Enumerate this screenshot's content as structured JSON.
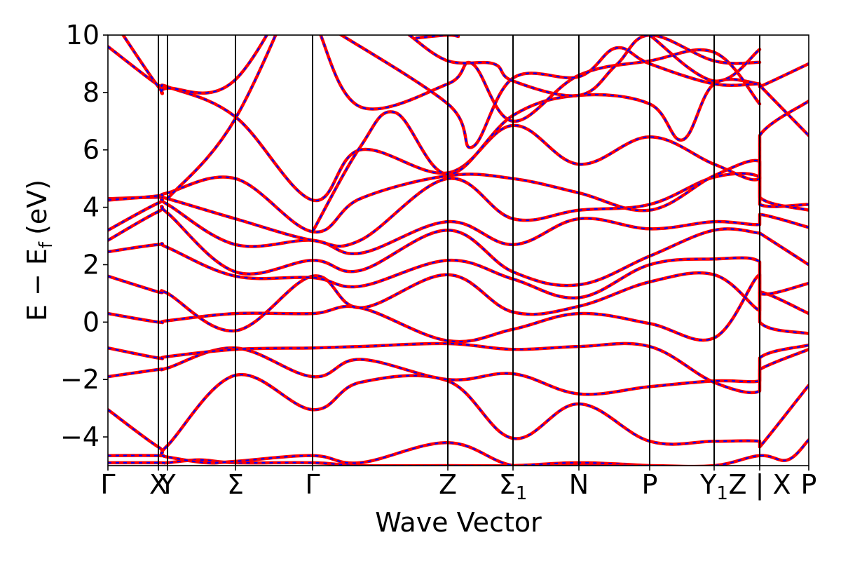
{
  "chart_data": {
    "type": "line",
    "xlabel": "Wave Vector",
    "ylabel_main": "E − E",
    "ylabel_sub": "f",
    "ylabel_unit": "(eV)",
    "ylim": [
      -5,
      10
    ],
    "yticks": [
      -4,
      -2,
      0,
      2,
      4,
      6,
      8,
      10
    ],
    "ytick_labels": [
      "−4",
      "−2",
      "0",
      "2",
      "4",
      "6",
      "8",
      "10"
    ],
    "x_range": [
      0,
      10
    ],
    "kpoints": [
      {
        "label": "Γ",
        "x": 0.0
      },
      {
        "label": "X",
        "x": 0.72
      },
      {
        "label": "Y",
        "x": 0.85
      },
      {
        "label": "Σ",
        "x": 1.82
      },
      {
        "label": "Γ",
        "x": 2.92
      },
      {
        "label": "Z",
        "x": 4.85
      },
      {
        "label": "Σ",
        "sub": "1",
        "x": 5.78
      },
      {
        "label": "N",
        "x": 6.72
      },
      {
        "label": "P",
        "x": 7.73
      },
      {
        "label": "Y",
        "sub": "1",
        "x": 8.65
      },
      {
        "label": "Z | X",
        "x": 9.3
      },
      {
        "label": "P",
        "x": 10.0
      }
    ],
    "series_styles": [
      {
        "color": "#ff0000",
        "style": "solid"
      },
      {
        "color": "#0000ff",
        "style": "dashed"
      }
    ],
    "bands": [
      [
        [
          0,
          -4.9
        ],
        [
          0.72,
          -4.9
        ],
        [
          0.85,
          -4.9
        ],
        [
          1.3,
          -4.8
        ],
        [
          1.82,
          -4.9
        ],
        [
          2.92,
          -4.9
        ],
        [
          3.6,
          -5.0
        ],
        [
          4.85,
          -5.0
        ],
        [
          5.78,
          -5.0
        ],
        [
          6.72,
          -4.9
        ],
        [
          7.73,
          -5.0
        ]
      ],
      [
        [
          0,
          -4.65
        ],
        [
          0.72,
          -4.65
        ],
        [
          0.85,
          -4.7
        ],
        [
          1.4,
          -4.9
        ],
        [
          1.82,
          -4.85
        ],
        [
          2.92,
          -4.65
        ],
        [
          3.6,
          -4.9
        ],
        [
          4.85,
          -4.2
        ],
        [
          5.78,
          -5.0
        ],
        [
          6.72,
          -5.0
        ],
        [
          7.73,
          -5.0
        ],
        [
          8.65,
          -5.0
        ],
        [
          9.3,
          -4.65
        ],
        [
          9.7,
          -4.8
        ],
        [
          10,
          -4.1
        ]
      ],
      [
        [
          0,
          -3.05
        ],
        [
          0.72,
          -4.35
        ],
        [
          0.85,
          -4.3
        ],
        [
          1.82,
          -1.85
        ],
        [
          2.92,
          -3.05
        ],
        [
          3.6,
          -2.1
        ],
        [
          4.85,
          -2.05
        ],
        [
          5.78,
          -4.05
        ],
        [
          6.72,
          -2.85
        ],
        [
          7.73,
          -4.15
        ],
        [
          8.65,
          -4.15
        ],
        [
          9.3,
          -4.15
        ],
        [
          9.3,
          -4.35
        ],
        [
          10,
          -2.2
        ]
      ],
      [
        [
          0,
          -1.9
        ],
        [
          0.72,
          -1.65
        ],
        [
          0.85,
          -1.6
        ],
        [
          1.82,
          -0.9
        ],
        [
          2.92,
          -1.9
        ],
        [
          3.6,
          -1.3
        ],
        [
          4.85,
          -2.0
        ],
        [
          5.78,
          -1.8
        ],
        [
          6.72,
          -2.5
        ],
        [
          7.73,
          -2.25
        ],
        [
          8.65,
          -2.05
        ],
        [
          9.3,
          -2.05
        ],
        [
          9.3,
          -1.65
        ],
        [
          10,
          -0.95
        ]
      ],
      [
        [
          0,
          -0.9
        ],
        [
          0.72,
          -1.25
        ],
        [
          0.85,
          -1.2
        ],
        [
          1.82,
          -0.95
        ],
        [
          2.92,
          -0.9
        ],
        [
          3.6,
          -0.85
        ],
        [
          4.85,
          -0.75
        ],
        [
          5.78,
          -0.95
        ],
        [
          6.72,
          -0.85
        ],
        [
          7.73,
          -0.85
        ],
        [
          8.65,
          -2.1
        ],
        [
          9.3,
          -2.4
        ],
        [
          9.3,
          -1.25
        ],
        [
          10,
          -0.8
        ]
      ],
      [
        [
          0,
          0.3
        ],
        [
          0.72,
          0.0
        ],
        [
          0.85,
          0.05
        ],
        [
          1.82,
          0.3
        ],
        [
          2.92,
          0.3
        ],
        [
          3.6,
          0.5
        ],
        [
          4.85,
          -0.65
        ],
        [
          5.78,
          -0.25
        ],
        [
          6.72,
          0.3
        ],
        [
          7.73,
          -0.05
        ],
        [
          8.65,
          -0.55
        ],
        [
          9.3,
          1.65
        ],
        [
          9.3,
          0.0
        ],
        [
          10,
          -0.4
        ]
      ],
      [
        [
          0,
          1.6
        ],
        [
          0.72,
          1.05
        ],
        [
          0.85,
          1.0
        ],
        [
          1.82,
          -0.3
        ],
        [
          2.92,
          1.6
        ],
        [
          3.6,
          0.5
        ],
        [
          4.85,
          1.65
        ],
        [
          5.78,
          0.35
        ],
        [
          6.72,
          0.55
        ],
        [
          7.73,
          1.4
        ],
        [
          8.65,
          1.65
        ],
        [
          9.3,
          0.4
        ],
        [
          9.3,
          1.05
        ],
        [
          10,
          0.3
        ]
      ],
      [
        [
          0,
          2.45
        ],
        [
          0.72,
          2.7
        ],
        [
          0.85,
          2.6
        ],
        [
          1.82,
          1.6
        ],
        [
          2.92,
          1.55
        ],
        [
          3.6,
          1.25
        ],
        [
          4.85,
          2.15
        ],
        [
          5.78,
          1.5
        ],
        [
          6.72,
          0.85
        ],
        [
          7.73,
          2.0
        ],
        [
          8.65,
          2.2
        ],
        [
          9.3,
          2.1
        ],
        [
          9.3,
          1.0
        ],
        [
          10,
          1.35
        ]
      ],
      [
        [
          0,
          2.85
        ],
        [
          0.72,
          3.85
        ],
        [
          0.85,
          3.8
        ],
        [
          1.82,
          1.75
        ],
        [
          2.92,
          2.15
        ],
        [
          3.6,
          1.8
        ],
        [
          4.85,
          3.2
        ],
        [
          5.78,
          1.75
        ],
        [
          6.72,
          1.3
        ],
        [
          7.73,
          2.3
        ],
        [
          8.65,
          3.2
        ],
        [
          9.3,
          3.1
        ],
        [
          9.3,
          3.1
        ],
        [
          10,
          2.0
        ]
      ],
      [
        [
          0,
          3.2
        ],
        [
          0.72,
          4.15
        ],
        [
          0.85,
          4.1
        ],
        [
          1.82,
          2.7
        ],
        [
          2.92,
          2.85
        ],
        [
          3.6,
          2.4
        ],
        [
          4.85,
          3.5
        ],
        [
          5.78,
          2.7
        ],
        [
          6.72,
          3.6
        ],
        [
          7.73,
          3.25
        ],
        [
          8.65,
          3.5
        ],
        [
          9.3,
          3.4
        ],
        [
          9.3,
          3.75
        ],
        [
          10,
          3.3
        ]
      ],
      [
        [
          0,
          4.3
        ],
        [
          0.72,
          4.35
        ],
        [
          0.85,
          4.3
        ],
        [
          1.82,
          3.6
        ],
        [
          2.92,
          2.85
        ],
        [
          3.6,
          2.85
        ],
        [
          4.85,
          5.0
        ],
        [
          5.78,
          3.6
        ],
        [
          6.72,
          3.9
        ],
        [
          7.73,
          4.1
        ],
        [
          8.65,
          5.05
        ],
        [
          9.3,
          5.05
        ],
        [
          9.3,
          4.1
        ],
        [
          10,
          4.1
        ]
      ],
      [
        [
          0,
          4.25
        ],
        [
          0.72,
          4.4
        ],
        [
          0.85,
          4.5
        ],
        [
          1.82,
          5.0
        ],
        [
          2.92,
          3.15
        ],
        [
          3.6,
          4.3
        ],
        [
          4.85,
          5.1
        ],
        [
          5.78,
          5.0
        ],
        [
          6.72,
          4.5
        ],
        [
          7.73,
          3.9
        ],
        [
          8.65,
          5.1
        ],
        [
          9.3,
          5.6
        ],
        [
          9.3,
          4.35
        ],
        [
          10,
          3.9
        ]
      ],
      [
        [
          0,
          9.6
        ],
        [
          0.72,
          8.25
        ],
        [
          0.85,
          8.2
        ],
        [
          1.82,
          7.15
        ],
        [
          2.92,
          4.25
        ],
        [
          3.6,
          6.0
        ],
        [
          4.85,
          5.2
        ],
        [
          5.78,
          6.85
        ],
        [
          6.72,
          5.5
        ],
        [
          7.73,
          6.45
        ],
        [
          8.65,
          5.5
        ],
        [
          9.3,
          5.0
        ],
        [
          9.3,
          6.5
        ],
        [
          10,
          7.7
        ]
      ],
      [
        [
          0.85,
          4.3
        ],
        [
          1.82,
          7.1
        ],
        [
          2.92,
          13.0
        ]
      ],
      [
        [
          0,
          10.8
        ],
        [
          0.72,
          8.2
        ],
        [
          0.85,
          8.15
        ],
        [
          1.82,
          8.45
        ],
        [
          2.92,
          13.0
        ]
      ],
      [
        [
          2.92,
          3.15
        ],
        [
          3.6,
          6.1
        ],
        [
          4.1,
          7.3
        ],
        [
          4.85,
          5.15
        ],
        [
          5.78,
          7.2
        ],
        [
          6.72,
          7.9
        ],
        [
          7.73,
          7.6
        ],
        [
          8.2,
          6.35
        ],
        [
          8.65,
          8.3
        ],
        [
          9.3,
          8.3
        ],
        [
          9.3,
          8.25
        ],
        [
          10,
          6.5
        ]
      ],
      [
        [
          3.0,
          10.2
        ],
        [
          3.6,
          7.5
        ],
        [
          4.85,
          8.3
        ],
        [
          5.2,
          9.0
        ],
        [
          5.78,
          7.0
        ],
        [
          6.72,
          8.6
        ],
        [
          7.73,
          9.1
        ],
        [
          8.65,
          9.4
        ],
        [
          9.3,
          7.6
        ]
      ],
      [
        [
          3.2,
          10.2
        ],
        [
          4.85,
          7.6
        ],
        [
          5.2,
          6.1
        ],
        [
          5.78,
          8.5
        ],
        [
          6.72,
          8.55
        ],
        [
          7.25,
          9.55
        ],
        [
          7.73,
          9.0
        ],
        [
          8.65,
          8.3
        ],
        [
          9.3,
          8.3
        ],
        [
          9.3,
          8.2
        ],
        [
          10,
          9.0
        ]
      ],
      [
        [
          4.3,
          10.0
        ],
        [
          4.85,
          9.1
        ],
        [
          5.5,
          9.0
        ],
        [
          5.78,
          8.4
        ],
        [
          6.72,
          7.9
        ],
        [
          7.25,
          8.95
        ],
        [
          7.73,
          10.0
        ],
        [
          8.65,
          9.1
        ],
        [
          9.3,
          9.05
        ]
      ],
      [
        [
          4.4,
          9.9
        ],
        [
          4.85,
          10.0
        ],
        [
          5.0,
          9.95
        ]
      ],
      [
        [
          7.73,
          10.0
        ],
        [
          8.65,
          8.4
        ],
        [
          9.3,
          9.5
        ]
      ]
    ]
  }
}
